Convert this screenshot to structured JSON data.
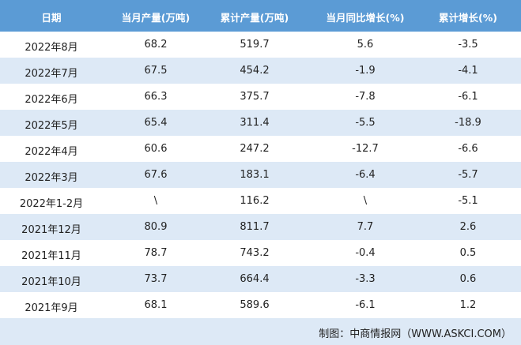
{
  "table": {
    "header": [
      "日期",
      "当月产量(万吨)",
      "累计产量(万吨)",
      "当月同比增长(%)",
      "累计增长(%)"
    ],
    "rows": [
      [
        "2022年8月",
        "68.2",
        "519.7",
        "5.6",
        "-3.5"
      ],
      [
        "2022年7月",
        "67.5",
        "454.2",
        "-1.9",
        "-4.1"
      ],
      [
        "2022年6月",
        "66.3",
        "375.7",
        "-7.8",
        "-6.1"
      ],
      [
        "2022年5月",
        "65.4",
        "311.4",
        "-5.5",
        "-18.9"
      ],
      [
        "2022年4月",
        "60.6",
        "247.2",
        "-12.7",
        "-6.6"
      ],
      [
        "2022年3月",
        "67.6",
        "183.1",
        "-6.4",
        "-5.7"
      ],
      [
        "2022年1-2月",
        "\\",
        "116.2",
        "\\",
        "-5.1"
      ],
      [
        "2021年12月",
        "80.9",
        "811.7",
        "7.7",
        "2.6"
      ],
      [
        "2021年11月",
        "78.7",
        "743.2",
        "-0.4",
        "0.5"
      ],
      [
        "2021年10月",
        "73.7",
        "664.4",
        "-3.3",
        "0.6"
      ],
      [
        "2021年9月",
        "68.1",
        "589.6",
        "-6.1",
        "1.2"
      ]
    ]
  },
  "footer": "制图：中商情报网（WWW.ASKCI.COM）"
}
